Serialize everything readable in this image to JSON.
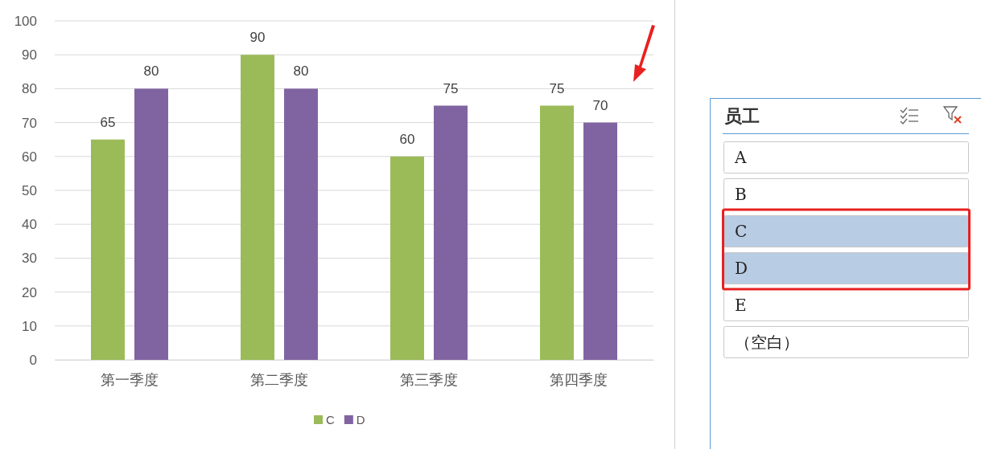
{
  "chart_data": [
    {
      "type": "bar",
      "categories": [
        "第一季度",
        "第二季度",
        "第三季度",
        "第四季度"
      ],
      "series": [
        {
          "name": "C",
          "color": "#9bbb59",
          "values": [
            65,
            90,
            60,
            75
          ]
        },
        {
          "name": "D",
          "color": "#8064a2",
          "values": [
            80,
            80,
            75,
            70
          ]
        }
      ],
      "ylim": [
        0,
        100
      ],
      "yticks": [
        0,
        10,
        20,
        30,
        40,
        50,
        60,
        70,
        80,
        90,
        100
      ],
      "grid": "y",
      "legend": "bottom",
      "data_labels": true
    },
    {
      "type": "other",
      "title": "员工",
      "categories": [
        "A",
        "B",
        "C",
        "D",
        "E",
        "（空白）"
      ],
      "colors": [
        "#ffffff",
        "#ffffff",
        "#b8cce4",
        "#b8cce4",
        "#ffffff",
        "#ffffff"
      ]
    }
  ]
}
